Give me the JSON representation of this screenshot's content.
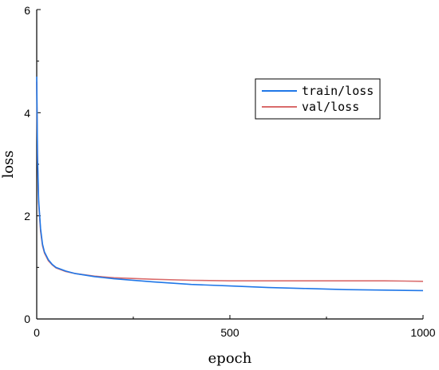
{
  "chart_data": {
    "type": "line",
    "title": "",
    "xlabel": "epoch",
    "ylabel": "loss",
    "xlim": [
      0,
      1000
    ],
    "ylim": [
      0,
      6
    ],
    "x_ticks": [
      0,
      500,
      1000
    ],
    "y_ticks": [
      0,
      2,
      4,
      6
    ],
    "grid": false,
    "legend_position": "top-right",
    "series": [
      {
        "name": "train/loss",
        "color": "#1f77e8",
        "x": [
          0,
          2,
          5,
          10,
          15,
          20,
          30,
          40,
          50,
          75,
          100,
          150,
          200,
          300,
          400,
          500,
          600,
          700,
          800,
          900,
          1000
        ],
        "values": [
          4.7,
          3.2,
          2.3,
          1.75,
          1.45,
          1.3,
          1.15,
          1.06,
          1.0,
          0.93,
          0.88,
          0.82,
          0.78,
          0.72,
          0.67,
          0.64,
          0.61,
          0.59,
          0.57,
          0.56,
          0.55
        ]
      },
      {
        "name": "val/loss",
        "color": "#d96b6b",
        "x": [
          0,
          2,
          5,
          10,
          15,
          20,
          30,
          40,
          50,
          75,
          100,
          150,
          200,
          300,
          400,
          500,
          600,
          700,
          800,
          900,
          1000
        ],
        "values": [
          4.6,
          3.1,
          2.25,
          1.7,
          1.42,
          1.28,
          1.13,
          1.05,
          0.99,
          0.92,
          0.88,
          0.83,
          0.8,
          0.77,
          0.75,
          0.74,
          0.74,
          0.74,
          0.74,
          0.74,
          0.73
        ]
      }
    ]
  }
}
